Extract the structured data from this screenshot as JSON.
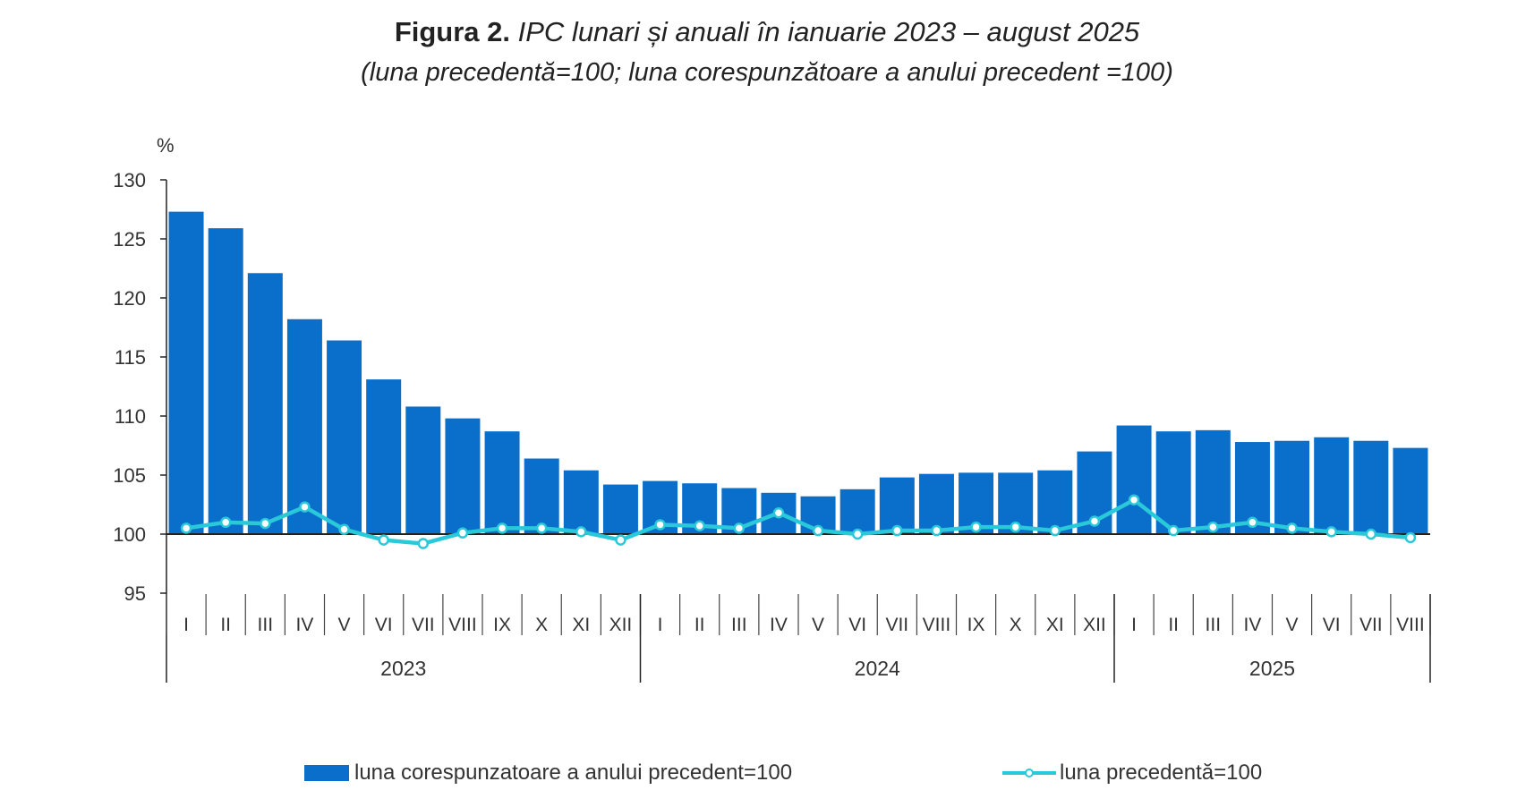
{
  "title": {
    "label": "Figura 2.",
    "text": "IPC lunari și anuali în ianuarie 2023 – august 2025",
    "subtitle": "(luna precedentă=100; luna corespunzătoare a anului precedent =100)"
  },
  "colors": {
    "bars": "#0a6ecb",
    "line": "#2ac9d9",
    "axis": "#222222"
  },
  "chart_data": {
    "type": "bar",
    "ylabel": "%",
    "ylim": [
      95,
      130
    ],
    "yticks": [
      95,
      100,
      105,
      110,
      115,
      120,
      125,
      130
    ],
    "grid": false,
    "legend_position": "bottom",
    "categories": [
      "I",
      "II",
      "III",
      "IV",
      "V",
      "VI",
      "VII",
      "VIII",
      "IX",
      "X",
      "XI",
      "XII",
      "I",
      "II",
      "III",
      "IV",
      "V",
      "VI",
      "VII",
      "VIII",
      "IX",
      "X",
      "XI",
      "XII",
      "I",
      "II",
      "III",
      "IV",
      "V",
      "VI",
      "VII",
      "VIII"
    ],
    "years": [
      {
        "label": "2023",
        "months": 12
      },
      {
        "label": "2024",
        "months": 12
      },
      {
        "label": "2025",
        "months": 8
      }
    ],
    "series": [
      {
        "name": "luna corespunzatoare a anului precedent=100",
        "type": "bar",
        "values": [
          127.3,
          125.9,
          122.1,
          118.2,
          116.4,
          113.1,
          110.8,
          109.8,
          108.7,
          106.4,
          105.4,
          104.2,
          104.5,
          104.3,
          103.9,
          103.5,
          103.2,
          103.8,
          104.8,
          105.1,
          105.2,
          105.2,
          105.4,
          107.0,
          109.2,
          108.7,
          108.8,
          107.8,
          107.9,
          108.2,
          107.9,
          107.3
        ]
      },
      {
        "name": "luna precedentă=100",
        "type": "line",
        "values": [
          100.5,
          101.0,
          100.9,
          102.3,
          100.4,
          99.5,
          99.2,
          100.1,
          100.5,
          100.5,
          100.2,
          99.5,
          100.8,
          100.7,
          100.5,
          101.8,
          100.3,
          100.0,
          100.3,
          100.3,
          100.6,
          100.6,
          100.3,
          101.1,
          102.9,
          100.3,
          100.6,
          101.0,
          100.5,
          100.2,
          100.0,
          99.7
        ]
      }
    ]
  }
}
